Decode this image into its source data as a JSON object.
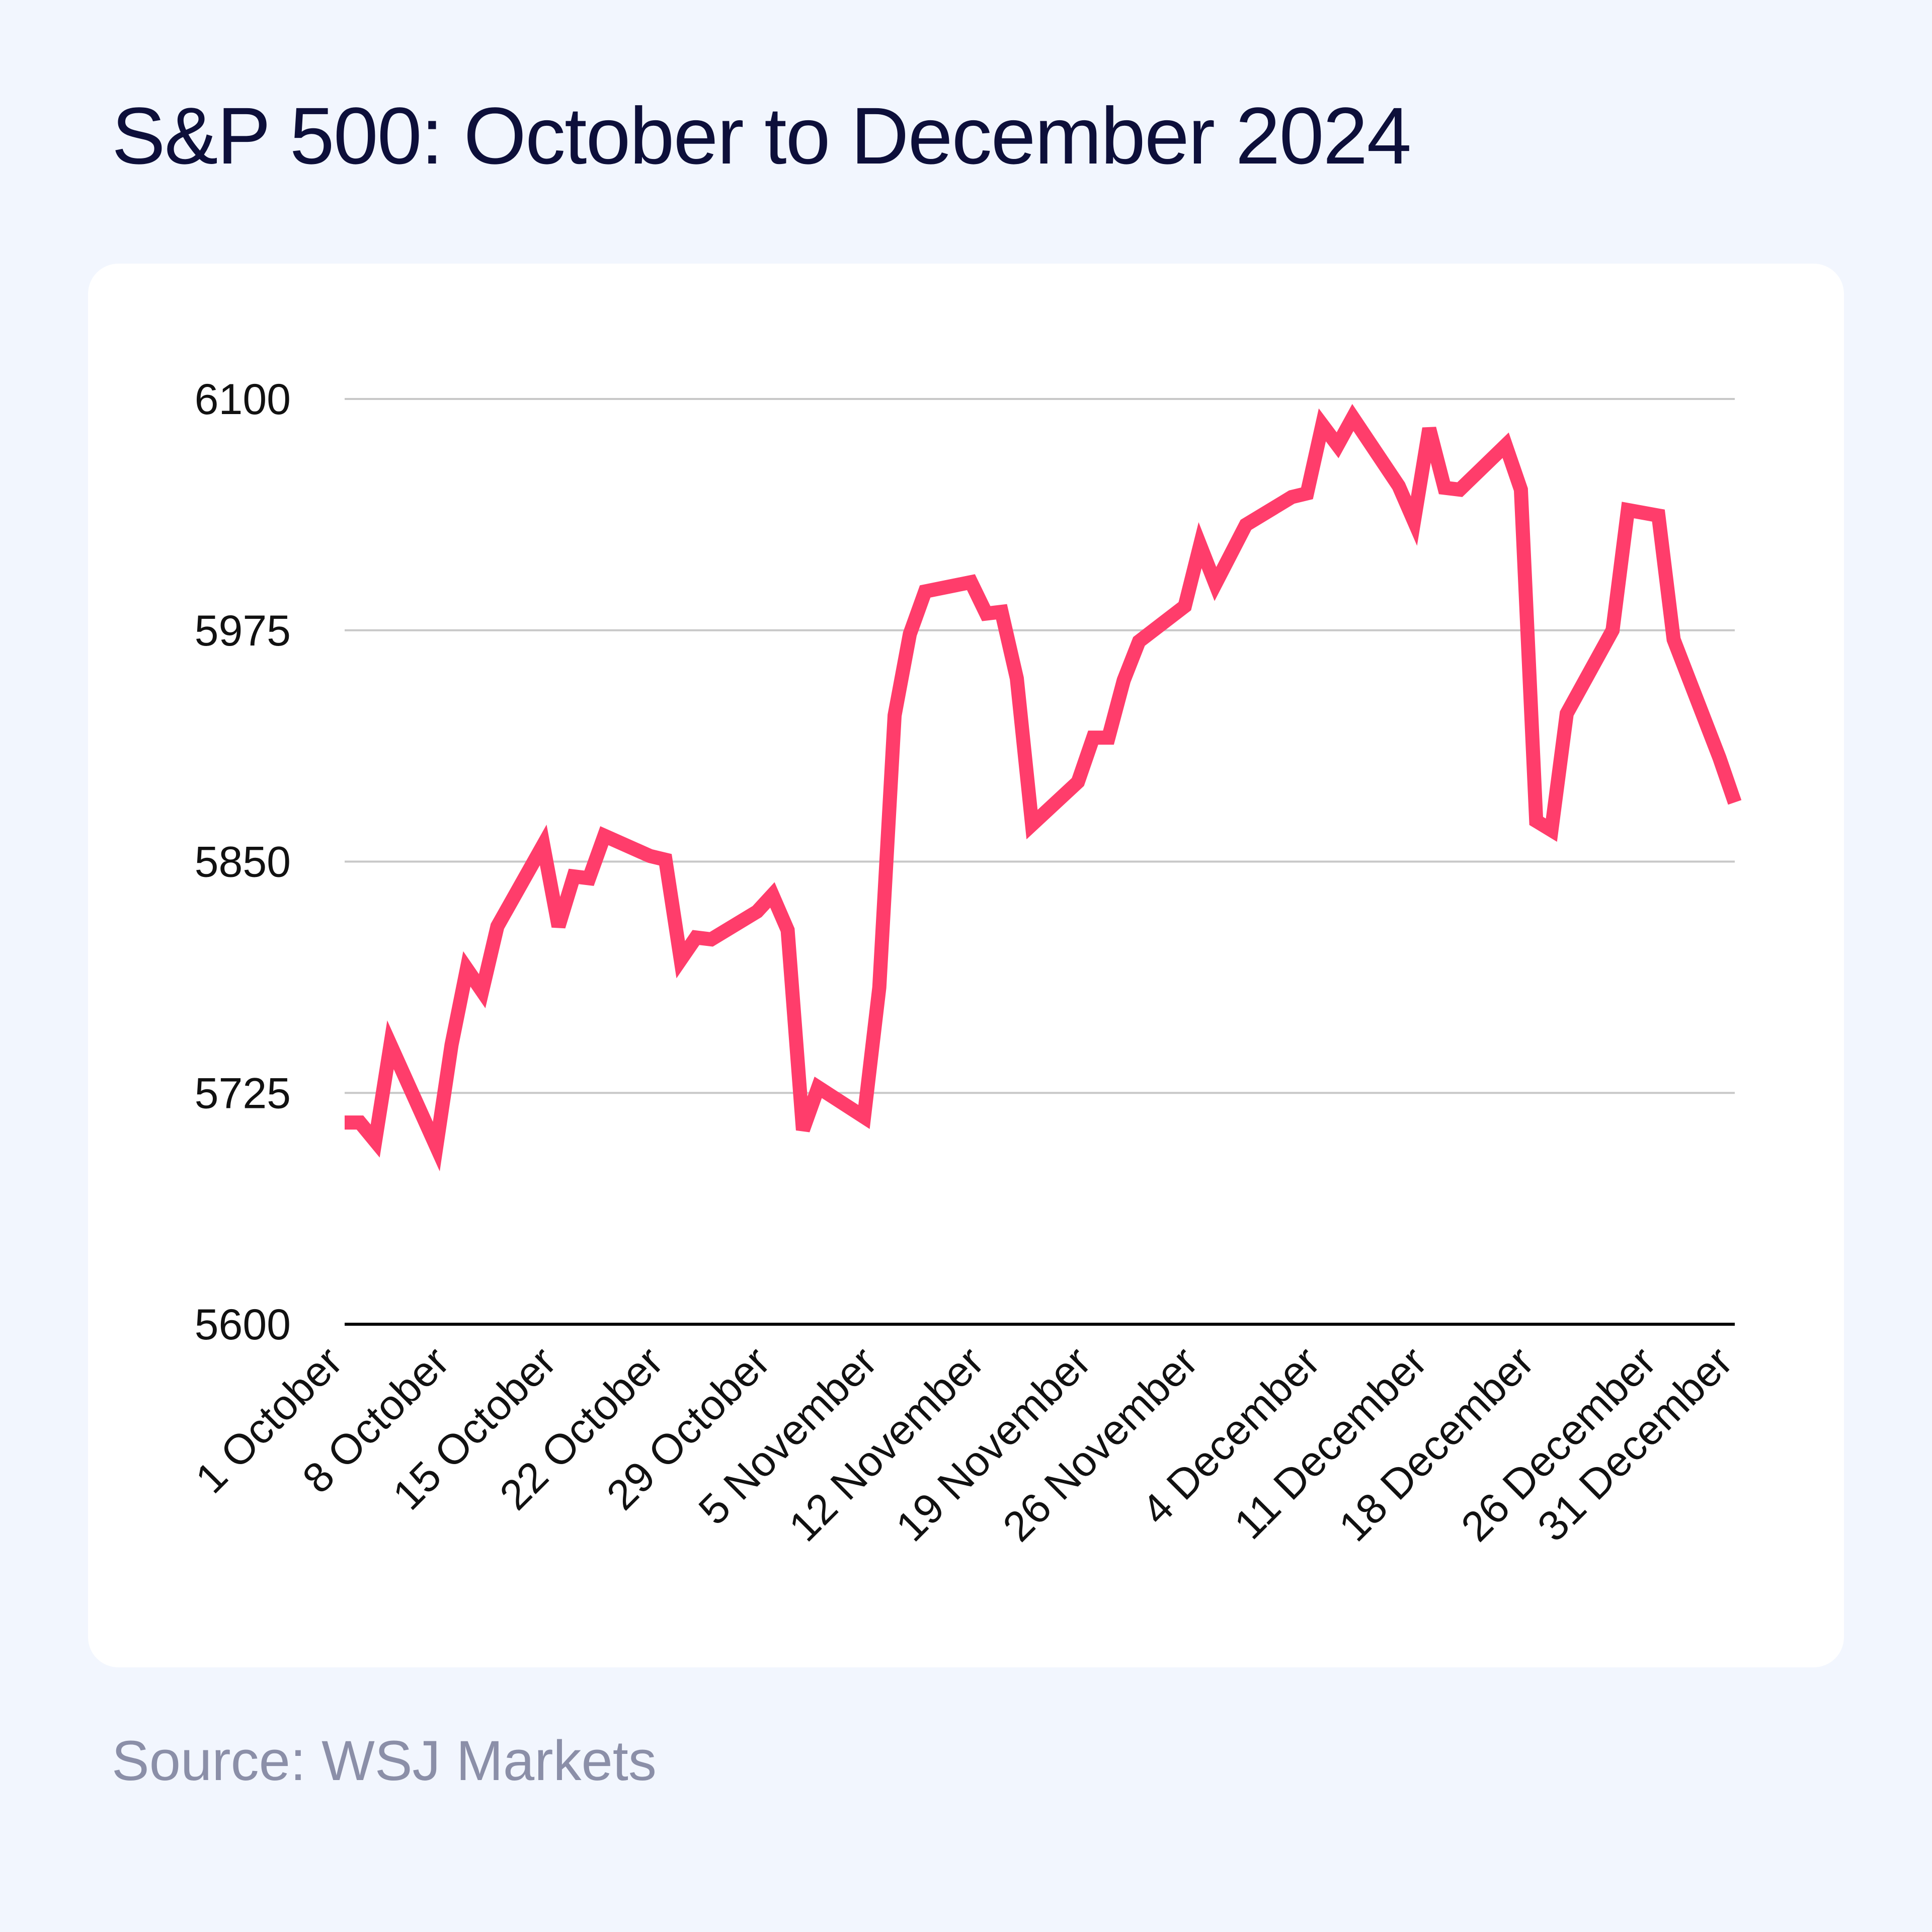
{
  "title": "S&P 500: October to December 2024",
  "source": "Source: WSJ Markets",
  "colors": {
    "background": "#f2f6fe",
    "card": "#ffffff",
    "line": "#ff3d6b",
    "title": "#0d0f3a",
    "source": "#8b8fa8",
    "grid": "#c8c8c8",
    "axis": "#000000"
  },
  "chart_data": {
    "type": "line",
    "title": "S&P 500: October to December 2024",
    "xlabel": "",
    "ylabel": "",
    "ylim": [
      5600,
      6100
    ],
    "yticks": [
      6100,
      5975,
      5850,
      5725,
      5600
    ],
    "grid": true,
    "legend": "none",
    "x_tick_labels": [
      "1 October",
      "8 October",
      "15 October",
      "22 October",
      "29 October",
      "5 November",
      "12 November",
      "19 November",
      "26 November",
      "4 December",
      "11 December",
      "18 December",
      "26 December",
      "31 December"
    ],
    "series": [
      {
        "x": [
          "2024-10-01",
          "2024-10-02",
          "2024-10-03",
          "2024-10-04",
          "2024-10-07",
          "2024-10-08",
          "2024-10-09",
          "2024-10-10",
          "2024-10-11",
          "2024-10-14",
          "2024-10-15",
          "2024-10-16",
          "2024-10-17",
          "2024-10-18",
          "2024-10-21",
          "2024-10-22",
          "2024-10-23",
          "2024-10-24",
          "2024-10-25",
          "2024-10-28",
          "2024-10-29",
          "2024-10-30",
          "2024-10-31",
          "2024-11-01",
          "2024-11-04",
          "2024-11-05",
          "2024-11-06",
          "2024-11-07",
          "2024-11-08",
          "2024-11-11",
          "2024-11-12",
          "2024-11-13",
          "2024-11-14",
          "2024-11-15",
          "2024-11-18",
          "2024-11-19",
          "2024-11-20",
          "2024-11-21",
          "2024-11-22",
          "2024-11-25",
          "2024-11-26",
          "2024-11-27",
          "2024-11-29",
          "2024-12-02",
          "2024-12-03",
          "2024-12-04",
          "2024-12-05",
          "2024-12-06",
          "2024-12-09",
          "2024-12-10",
          "2024-12-11",
          "2024-12-12",
          "2024-12-13",
          "2024-12-16",
          "2024-12-17",
          "2024-12-18",
          "2024-12-19",
          "2024-12-20",
          "2024-12-23",
          "2024-12-24",
          "2024-12-26",
          "2024-12-27",
          "2024-12-30",
          "2024-12-31"
        ],
        "values": [
          5709,
          5709,
          5699,
          5751,
          5696,
          5751,
          5792,
          5780,
          5815,
          5859,
          5815,
          5842,
          5841,
          5864,
          5853,
          5851,
          5797,
          5809,
          5808,
          5823,
          5832,
          5813,
          5705,
          5728,
          5712,
          5782,
          5929,
          5973,
          5996,
          6001,
          5984,
          5985,
          5949,
          5870,
          5893,
          5917,
          5917,
          5948,
          5969,
          5988,
          6021,
          6000,
          6032,
          6047,
          6049,
          6086,
          6075,
          6090,
          6053,
          6034,
          6084,
          6052,
          6051,
          6075,
          6051,
          5872,
          5867,
          5930,
          5975,
          6040,
          6037,
          5970,
          5906,
          5882
        ]
      }
    ]
  }
}
